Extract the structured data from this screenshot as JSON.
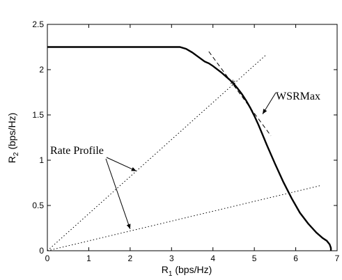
{
  "chart_data": {
    "type": "line",
    "xlabel": {
      "main": "R",
      "sub": "1",
      "unit": "(bps/Hz)"
    },
    "ylabel": {
      "main": "R",
      "sub": "2",
      "unit": "(bps/Hz)"
    },
    "xlim": [
      0,
      7
    ],
    "ylim": [
      0,
      2.5
    ],
    "xticks": [
      "0",
      "1",
      "2",
      "3",
      "4",
      "5",
      "6",
      "7"
    ],
    "yticks": [
      "0",
      "0.5",
      "1",
      "1.5",
      "2",
      "2.5"
    ],
    "grid": false,
    "series": [
      {
        "style": "solid-thick",
        "x": [
          0,
          3.2,
          3.35,
          3.5,
          3.65,
          3.8,
          3.9,
          4.0,
          4.2,
          4.4,
          4.5,
          4.6,
          4.7,
          4.8,
          4.9,
          5.0,
          5.1,
          5.2,
          5.3,
          5.5,
          5.7,
          5.9,
          6.1,
          6.3,
          6.5,
          6.65,
          6.75,
          6.82,
          6.85,
          6.85
        ],
        "y": [
          2.25,
          2.25,
          2.23,
          2.19,
          2.14,
          2.09,
          2.07,
          2.04,
          1.97,
          1.89,
          1.845,
          1.79,
          1.73,
          1.66,
          1.58,
          1.49,
          1.39,
          1.28,
          1.17,
          0.96,
          0.76,
          0.58,
          0.42,
          0.3,
          0.2,
          0.14,
          0.11,
          0.07,
          0.03,
          0
        ]
      },
      {
        "style": "dashed",
        "x": [
          3.9,
          5.4
        ],
        "y": [
          2.2,
          1.27
        ]
      },
      {
        "style": "dotted",
        "x": [
          0,
          5.3
        ],
        "y": [
          0,
          2.17
        ]
      },
      {
        "style": "dotted",
        "x": [
          0,
          6.6
        ],
        "y": [
          0,
          0.72
        ]
      }
    ],
    "marker": {
      "symbol": "*",
      "x": 4.48,
      "y": 1.845
    },
    "annotations": [
      {
        "text": "WSRMax",
        "arrow_to": [
          5.2,
          1.51
        ]
      },
      {
        "text": "Rate Profile",
        "arrows_to": [
          [
            2.15,
            0.88
          ],
          [
            2.0,
            0.24
          ]
        ]
      }
    ]
  }
}
